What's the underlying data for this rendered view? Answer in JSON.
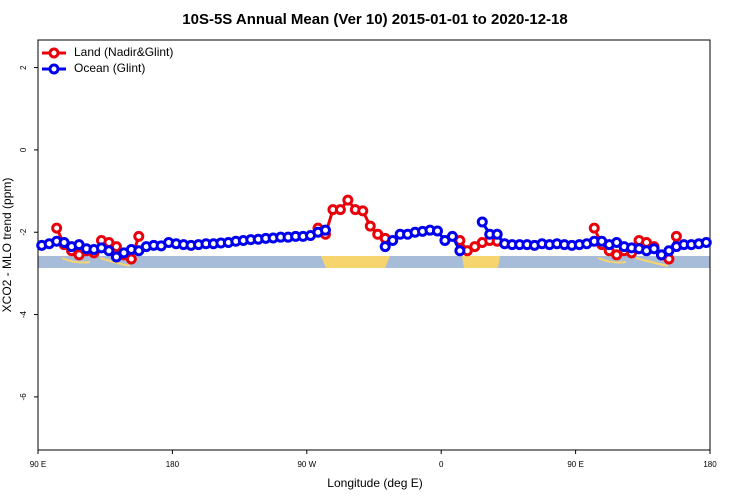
{
  "chart_data": {
    "type": "line",
    "title": "10S-5S Annual Mean (Ver 10)   2015-01-01 to 2020-12-18",
    "x_label": "Longitude (deg E)",
    "y_label": "XCO2 - MLO trend (ppm)",
    "x": [
      92.5,
      97.5,
      102.5,
      107.5,
      112.5,
      117.5,
      122.5,
      127.5,
      132.5,
      137.5,
      142.5,
      147.5,
      152.5,
      157.5,
      162.5,
      167.5,
      172.5,
      177.5,
      182.5,
      187.5,
      192.5,
      197.5,
      202.5,
      207.5,
      212.5,
      217.5,
      222.5,
      227.5,
      232.5,
      237.5,
      242.5,
      247.5,
      252.5,
      257.5,
      262.5,
      267.5,
      272.5,
      277.5,
      282.5,
      287.5,
      292.5,
      297.5,
      302.5,
      307.5,
      312.5,
      317.5,
      322.5,
      327.5,
      332.5,
      337.5,
      342.5,
      347.5,
      352.5,
      357.5,
      362.5,
      367.5,
      372.5,
      377.5,
      382.5,
      387.5,
      392.5,
      397.5,
      402.5,
      407.5,
      412.5,
      417.5,
      422.5,
      427.5,
      432.5,
      437.5,
      442.5,
      447.5,
      452.5,
      457.5,
      462.5,
      467.5,
      472.5,
      477.5,
      482.5,
      487.5,
      492.5,
      497.5,
      502.5,
      507.5,
      512.5,
      517.5,
      522.5,
      527.5,
      532.5,
      537.5
    ],
    "series": [
      {
        "name": "Land (Nadir&Glint)",
        "color": "#e8000b",
        "values": [
          null,
          null,
          -1.9,
          -2.3,
          -2.45,
          -2.55,
          -2.45,
          -2.5,
          -2.2,
          -2.25,
          -2.35,
          -2.55,
          -2.65,
          -2.1,
          null,
          null,
          null,
          null,
          null,
          null,
          null,
          null,
          null,
          null,
          null,
          null,
          null,
          null,
          null,
          null,
          null,
          null,
          null,
          null,
          null,
          null,
          null,
          -1.9,
          -2.05,
          -1.45,
          -1.45,
          -1.22,
          -1.45,
          -1.48,
          -1.85,
          -2.05,
          -2.15,
          null,
          null,
          null,
          null,
          null,
          null,
          null,
          null,
          null,
          -2.2,
          -2.45,
          -2.35,
          -2.25,
          -2.2,
          -2.22,
          null,
          null,
          null,
          null,
          null,
          null,
          null,
          null,
          null,
          null,
          null,
          null,
          -1.9,
          -2.3,
          -2.45,
          -2.55,
          -2.45,
          -2.5,
          -2.2,
          -2.25,
          -2.35,
          -2.55,
          -2.65,
          -2.1,
          null,
          null,
          null,
          null
        ]
      },
      {
        "name": "Ocean (Glint)",
        "color": "#0000ee",
        "values": [
          -2.32,
          -2.28,
          -2.22,
          -2.25,
          -2.35,
          -2.3,
          -2.4,
          -2.42,
          -2.38,
          -2.45,
          -2.6,
          -2.5,
          -2.42,
          -2.45,
          -2.35,
          -2.32,
          -2.33,
          -2.25,
          -2.28,
          -2.3,
          -2.32,
          -2.3,
          -2.28,
          -2.28,
          -2.26,
          -2.25,
          -2.22,
          -2.2,
          -2.18,
          -2.17,
          -2.15,
          -2.14,
          -2.12,
          -2.12,
          -2.1,
          -2.1,
          -2.08,
          -2.0,
          -1.95,
          null,
          null,
          null,
          null,
          null,
          null,
          null,
          -2.35,
          -2.2,
          -2.05,
          -2.05,
          -2.0,
          -1.98,
          -1.95,
          -1.97,
          -2.2,
          -2.1,
          -2.45,
          null,
          null,
          -1.75,
          -2.05,
          -2.05,
          -2.28,
          -2.3,
          -2.3,
          -2.3,
          -2.32,
          -2.28,
          -2.3,
          -2.28,
          -2.3,
          -2.32,
          -2.3,
          -2.28,
          -2.22,
          -2.22,
          -2.3,
          -2.25,
          -2.35,
          -2.38,
          -2.4,
          -2.45,
          -2.4,
          -2.55,
          -2.45,
          -2.35,
          -2.3,
          -2.3,
          -2.28,
          -2.25
        ]
      }
    ],
    "xlim": [
      90,
      540
    ],
    "xticks": [
      {
        "value": 90,
        "label": "90 E"
      },
      180,
      {
        "value": 270,
        "label": "90 W"
      },
      {
        "value": 360,
        "label": "0"
      },
      {
        "value": 450,
        "label": "90 E"
      },
      {
        "value": 540,
        "label": "180"
      }
    ],
    "ylim": [
      -7.29,
      2.67
    ],
    "yticks": [
      -6,
      -4,
      -2,
      0,
      2
    ],
    "legend": "top-left"
  }
}
